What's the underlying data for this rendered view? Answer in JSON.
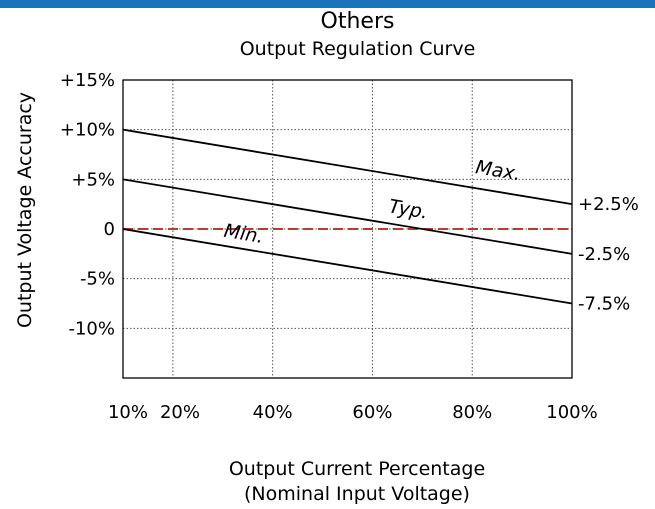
{
  "header": {
    "section": "Others"
  },
  "chart_data": {
    "type": "line",
    "title": "Output Regulation Curve",
    "xlabel": "Output Current Percentage",
    "xlabel_line2": "(Nominal Input Voltage)",
    "ylabel": "Output Voltage Accuracy",
    "xlim": [
      10,
      100
    ],
    "ylim": [
      -15,
      15
    ],
    "x_ticks": [
      {
        "value": 10,
        "label": "10%"
      },
      {
        "value": 20,
        "label": "20%"
      },
      {
        "value": 40,
        "label": "40%"
      },
      {
        "value": 60,
        "label": "60%"
      },
      {
        "value": 80,
        "label": "80%"
      },
      {
        "value": 100,
        "label": "100%"
      }
    ],
    "y_ticks": [
      {
        "value": 15,
        "label": "+15%"
      },
      {
        "value": 10,
        "label": "+10%"
      },
      {
        "value": 5,
        "label": "+5%"
      },
      {
        "value": 0,
        "label": "0"
      },
      {
        "value": -5,
        "label": "-5%"
      },
      {
        "value": -10,
        "label": "-10%"
      }
    ],
    "grid": true,
    "series": [
      {
        "name": "Max.",
        "x": [
          10,
          100
        ],
        "y": [
          10,
          2.5
        ],
        "end_label": "+2.5%",
        "color": "#000000"
      },
      {
        "name": "Typ.",
        "x": [
          10,
          100
        ],
        "y": [
          5,
          -2.5
        ],
        "end_label": "-2.5%",
        "color": "#000000"
      },
      {
        "name": "Min.",
        "x": [
          10,
          100
        ],
        "y": [
          0,
          -7.5
        ],
        "end_label": "-7.5%",
        "color": "#000000"
      }
    ],
    "reference_line": {
      "y": 0,
      "color": "#c0392b",
      "style": "dashed"
    }
  }
}
